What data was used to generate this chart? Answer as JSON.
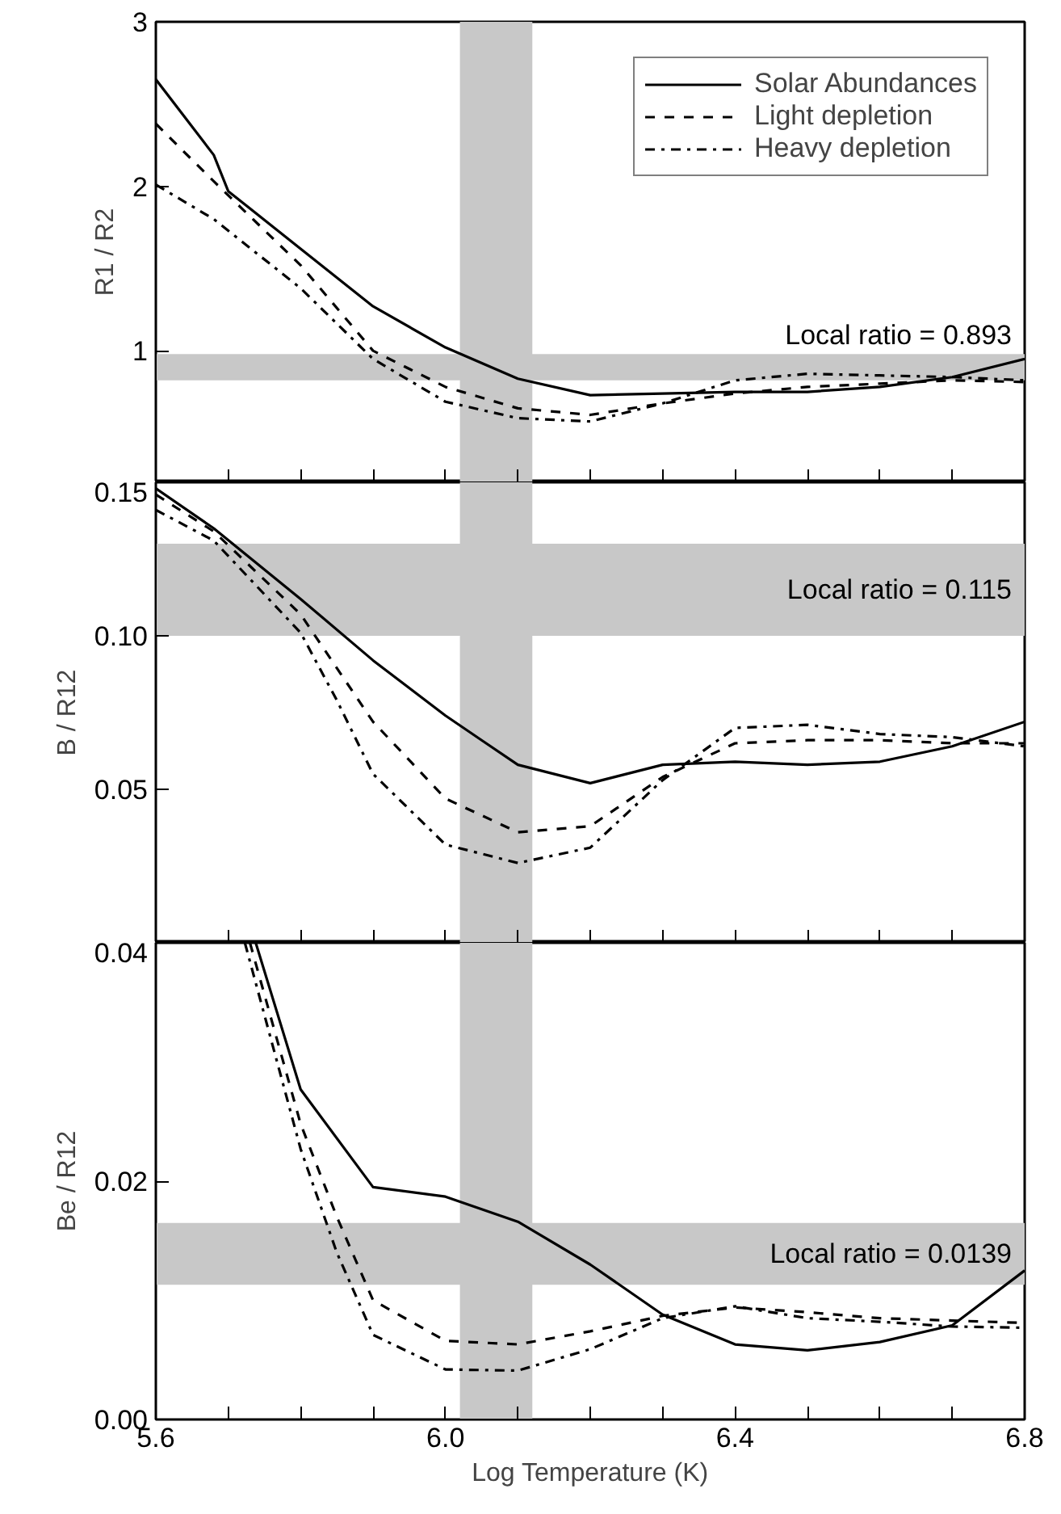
{
  "chart_data": [
    {
      "type": "line",
      "ylabel": "R1 / R2",
      "xlim": [
        5.6,
        6.8
      ],
      "ylim": [
        0.2,
        3
      ],
      "xticks": [
        {
          "value": 5.6,
          "label": null
        },
        {
          "value": 5.7,
          "label": null
        },
        {
          "value": 5.8,
          "label": null
        },
        {
          "value": 5.9,
          "label": null
        },
        {
          "value": 6.0,
          "label": null
        },
        {
          "value": 6.1,
          "label": null
        },
        {
          "value": 6.2,
          "label": null
        },
        {
          "value": 6.3,
          "label": null
        },
        {
          "value": 6.4,
          "label": null
        },
        {
          "value": 6.5,
          "label": null
        },
        {
          "value": 6.6,
          "label": null
        },
        {
          "value": 6.7,
          "label": null
        },
        {
          "value": 6.8,
          "label": null
        }
      ],
      "yticks": [
        1,
        2,
        3
      ],
      "tick_labels": "y",
      "legend": "top right",
      "grid": false,
      "series": [
        {
          "name": "Solar Abundances",
          "color": "#000000",
          "line_style": "solid",
          "x": [
            5.6,
            5.68,
            5.7,
            5.8,
            5.9,
            6.0,
            6.1,
            6.2,
            6.3,
            6.4,
            6.5,
            6.6,
            6.7,
            6.8
          ],
          "values": [
            2.65,
            2.19,
            1.97,
            1.62,
            1.27,
            1.02,
            0.83,
            0.73,
            0.74,
            0.75,
            0.75,
            0.78,
            0.84,
            0.95
          ]
        },
        {
          "name": "Light depletion",
          "color": "#000000",
          "line_style": "dashed",
          "x": [
            5.6,
            5.68,
            5.8,
            5.9,
            6.0,
            6.1,
            6.2,
            6.3,
            6.4,
            6.5,
            6.6,
            6.7,
            6.8
          ],
          "values": [
            2.38,
            2.03,
            1.52,
            1.0,
            0.78,
            0.65,
            0.61,
            0.68,
            0.74,
            0.78,
            0.8,
            0.82,
            0.81
          ]
        },
        {
          "name": "Heavy depletion",
          "color": "#000000",
          "line_style": "dashdot",
          "x": [
            5.6,
            5.68,
            5.8,
            5.9,
            6.0,
            6.1,
            6.2,
            6.3,
            6.4,
            6.5,
            6.6,
            6.7,
            6.8
          ],
          "values": [
            2.01,
            1.8,
            1.38,
            0.95,
            0.69,
            0.59,
            0.57,
            0.68,
            0.82,
            0.86,
            0.85,
            0.84,
            0.82
          ]
        }
      ],
      "bands": [
        {
          "axis": "x",
          "from": 6.02,
          "to": 6.12,
          "color": "#c8c8c8"
        },
        {
          "axis": "y",
          "from": 0.82,
          "to": 0.98,
          "color": "#c8c8c8",
          "label": "Local ratio = 0.893"
        }
      ]
    },
    {
      "type": "line",
      "ylabel": "B / R12",
      "xlim": [
        5.6,
        6.8
      ],
      "ylim": [
        0,
        0.15
      ],
      "xticks": [
        {
          "value": 5.6,
          "label": null
        },
        {
          "value": 5.7,
          "label": null
        },
        {
          "value": 5.8,
          "label": null
        },
        {
          "value": 5.9,
          "label": null
        },
        {
          "value": 6.0,
          "label": null
        },
        {
          "value": 6.1,
          "label": null
        },
        {
          "value": 6.2,
          "label": null
        },
        {
          "value": 6.3,
          "label": null
        },
        {
          "value": 6.4,
          "label": null
        },
        {
          "value": 6.5,
          "label": null
        },
        {
          "value": 6.6,
          "label": null
        },
        {
          "value": 6.7,
          "label": null
        },
        {
          "value": 6.8,
          "label": null
        }
      ],
      "yticks": [
        {
          "value": 0.05,
          "label": "0.05"
        },
        {
          "value": 0.1,
          "label": "0.10"
        },
        {
          "value": 0.15,
          "label": "0.15"
        }
      ],
      "tick_labels": "y",
      "grid": false,
      "series": [
        {
          "color": "#000000",
          "line_style": "solid",
          "x": [
            5.6,
            5.68,
            5.8,
            5.9,
            6.0,
            6.05,
            6.1,
            6.2,
            6.3,
            6.4,
            6.5,
            6.6,
            6.7,
            6.8
          ],
          "values": [
            0.148,
            0.135,
            0.112,
            0.092,
            0.074,
            0.066,
            0.058,
            0.052,
            0.058,
            0.059,
            0.058,
            0.059,
            0.064,
            0.072
          ]
        },
        {
          "color": "#000000",
          "line_style": "dashed",
          "x": [
            5.6,
            5.68,
            5.8,
            5.9,
            6.0,
            6.1,
            6.2,
            6.3,
            6.4,
            6.5,
            6.6,
            6.7,
            6.8
          ],
          "values": [
            0.146,
            0.134,
            0.107,
            0.072,
            0.047,
            0.036,
            0.038,
            0.054,
            0.065,
            0.066,
            0.066,
            0.065,
            0.065
          ]
        },
        {
          "color": "#000000",
          "line_style": "dashdot",
          "x": [
            5.6,
            5.68,
            5.8,
            5.85,
            5.9,
            6.0,
            6.1,
            6.2,
            6.3,
            6.4,
            6.5,
            6.6,
            6.7,
            6.8
          ],
          "values": [
            0.141,
            0.131,
            0.101,
            0.079,
            0.055,
            0.032,
            0.026,
            0.031,
            0.053,
            0.07,
            0.071,
            0.068,
            0.067,
            0.064
          ]
        }
      ],
      "bands": [
        {
          "axis": "x",
          "from": 6.02,
          "to": 6.12,
          "color": "#c8c8c8"
        },
        {
          "axis": "y",
          "from": 0.1,
          "to": 0.13,
          "color": "#c8c8c8",
          "label": "Local ratio = 0.115"
        }
      ]
    },
    {
      "type": "line",
      "ylabel": "Be / R12",
      "xlabel": "Log Temperature (K)",
      "xlim": [
        5.6,
        6.8
      ],
      "ylim": [
        0,
        0.04
      ],
      "xticks": [
        {
          "value": 5.6,
          "label": "5.6"
        },
        {
          "value": 5.7,
          "label": null
        },
        {
          "value": 5.8,
          "label": null
        },
        {
          "value": 5.9,
          "label": null
        },
        {
          "value": 6.0,
          "label": "6.0"
        },
        {
          "value": 6.1,
          "label": null
        },
        {
          "value": 6.2,
          "label": null
        },
        {
          "value": 6.3,
          "label": null
        },
        {
          "value": 6.4,
          "label": "6.4"
        },
        {
          "value": 6.5,
          "label": null
        },
        {
          "value": 6.6,
          "label": null
        },
        {
          "value": 6.7,
          "label": null
        },
        {
          "value": 6.8,
          "label": "6.8"
        }
      ],
      "yticks": [
        {
          "value": 0,
          "label": "0.00"
        },
        {
          "value": 0.02,
          "label": "0.02"
        },
        {
          "value": 0.04,
          "label": "0.04"
        }
      ],
      "grid": false,
      "series": [
        {
          "color": "#000000",
          "line_style": "solid",
          "x": [
            5.738,
            5.8,
            5.9,
            6.0,
            6.1,
            6.2,
            6.3,
            6.4,
            6.5,
            6.6,
            6.7,
            6.8
          ],
          "values": [
            0.04,
            0.0277,
            0.0195,
            0.0187,
            0.0166,
            0.013,
            0.0088,
            0.0063,
            0.0058,
            0.0065,
            0.0079,
            0.0125
          ]
        },
        {
          "color": "#000000",
          "line_style": "dashed",
          "x": [
            5.73,
            5.8,
            5.85,
            5.9,
            6.0,
            6.1,
            6.2,
            6.3,
            6.4,
            6.5,
            6.6,
            6.7,
            6.8
          ],
          "values": [
            0.04,
            0.0248,
            0.017,
            0.01,
            0.0066,
            0.0063,
            0.0074,
            0.0087,
            0.0094,
            0.009,
            0.0085,
            0.0083,
            0.0081
          ]
        },
        {
          "color": "#000000",
          "line_style": "dashdot",
          "x": [
            5.723,
            5.8,
            5.85,
            5.9,
            6.0,
            6.1,
            6.2,
            6.3,
            6.4,
            6.5,
            6.6,
            6.7,
            6.8
          ],
          "values": [
            0.04,
            0.0227,
            0.014,
            0.0071,
            0.0042,
            0.0041,
            0.0059,
            0.0085,
            0.0095,
            0.0085,
            0.0082,
            0.0078,
            0.0077
          ]
        }
      ],
      "bands": [
        {
          "axis": "x",
          "from": 6.02,
          "to": 6.12,
          "color": "#c8c8c8"
        },
        {
          "axis": "y",
          "from": 0.0113,
          "to": 0.0165,
          "color": "#c8c8c8",
          "label": "Local ratio = 0.0139"
        }
      ]
    }
  ]
}
